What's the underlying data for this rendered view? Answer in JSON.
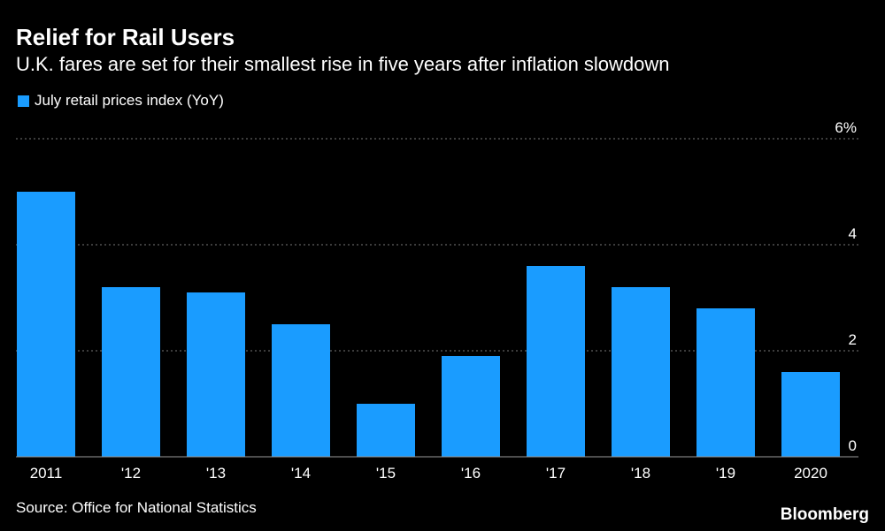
{
  "header": {
    "title": "Relief for Rail Users",
    "subtitle": "U.K. fares are set for their smallest rise in five years after inflation slowdown"
  },
  "legend": {
    "label": "July retail prices index (YoY)"
  },
  "footer": {
    "source": "Source: Office for National Statistics",
    "brand": "Bloomberg"
  },
  "colors": {
    "background": "#000000",
    "bar": "#1a9cff",
    "text": "#ffffff",
    "grid": "#777777"
  },
  "chart_data": {
    "type": "bar",
    "categories": [
      "2011",
      "'12",
      "'13",
      "'14",
      "'15",
      "'16",
      "'17",
      "'18",
      "'19",
      "2020"
    ],
    "series": [
      {
        "name": "July retail prices index (YoY)",
        "values": [
          5.0,
          3.2,
          3.1,
          2.5,
          1.0,
          1.9,
          3.6,
          3.2,
          2.8,
          1.6
        ]
      }
    ],
    "y_ticks": [
      {
        "value": 0,
        "label": "0"
      },
      {
        "value": 2,
        "label": "2"
      },
      {
        "value": 4,
        "label": "4"
      },
      {
        "value": 6,
        "label": "6%"
      }
    ],
    "ylim": [
      0,
      6
    ],
    "grid": true,
    "legend_position": "top-left"
  }
}
